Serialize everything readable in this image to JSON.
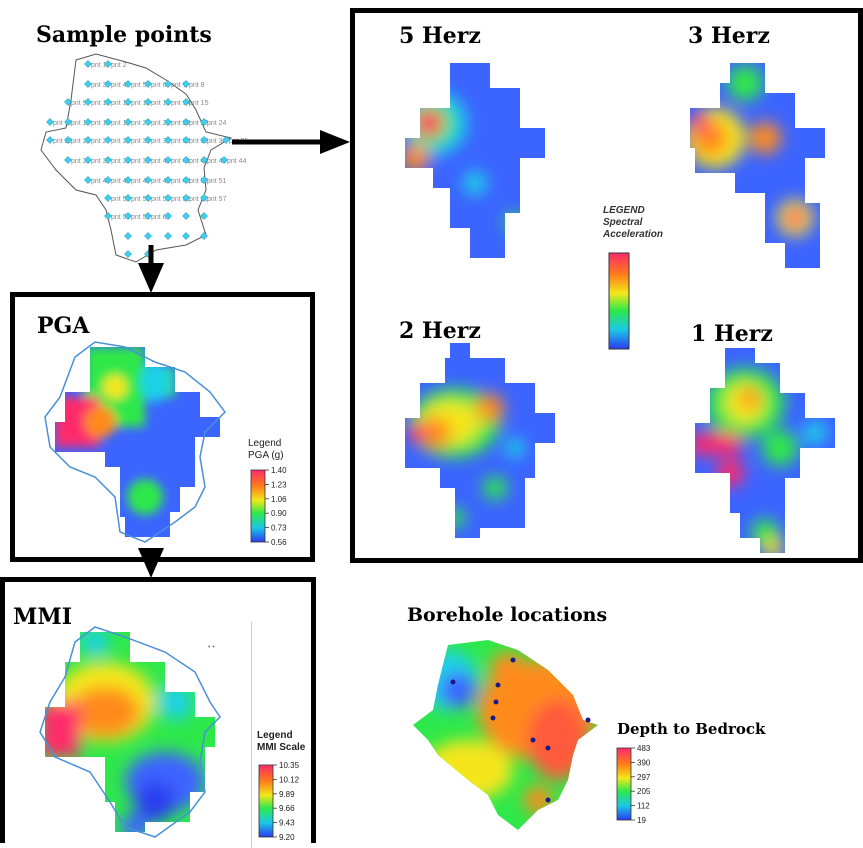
{
  "sample": {
    "title": "Sample points",
    "point_labels": [
      "pnt 1",
      "pnt 2",
      "pnt 3",
      "pnt 4",
      "pnt 5",
      "pnt 6",
      "pnt 7",
      "pnt 8",
      "pnt 9",
      "pnt 10",
      "pnt 11",
      "pnt 12",
      "pnt 13",
      "pnt 14",
      "pnt 15",
      "pnt 16",
      "pnt 17",
      "pnt 18",
      "pnt 19",
      "pnt 20",
      "pnt 21",
      "pnt 22",
      "pnt 23",
      "pnt 24",
      "pnt 25",
      "pnt 26",
      "pnt 27",
      "pnt 28",
      "pnt 30",
      "pnt 31",
      "pnt 32",
      "pnt 33",
      "pnt 34",
      "pnt 35",
      "pnt 36",
      "pnt 37",
      "pnt 38",
      "pnt 39",
      "pnt 40",
      "pnt 41",
      "pnt 42",
      "pnt 43",
      "pnt 44",
      "pnt 45",
      "pnt 46",
      "pnt 47",
      "pnt 48",
      "pnt 49",
      "pnt 50",
      "pnt 51",
      "pnt 52",
      "pnt 53",
      "pnt 54",
      "pnt 55",
      "pnt 56",
      "pnt 57",
      "pnt 58",
      "pnt 59",
      "pnt 60"
    ]
  },
  "spectral": {
    "maps": [
      {
        "title": "5 Herz"
      },
      {
        "title": "3 Herz"
      },
      {
        "title": "2 Herz"
      },
      {
        "title": "1 Herz"
      }
    ],
    "legend": {
      "line1": "LEGEND",
      "line2": "Spectral",
      "line3": "Acceleration"
    }
  },
  "pga": {
    "title": "PGA",
    "legend_title1": "Legend",
    "legend_title2": "PGA (g)",
    "ticks": [
      "1.40",
      "1.23",
      "1.06",
      "0.90",
      "0.73",
      "0.56"
    ]
  },
  "mmi": {
    "title": "MMI",
    "legend_title1": "Legend",
    "legend_title2": "MMI Scale",
    "ticks": [
      "10.35",
      "10.12",
      "9.89",
      "9.66",
      "9.43",
      "9.20"
    ]
  },
  "borehole": {
    "title": "Borehole locations",
    "legend_title": "Depth to Bedrock",
    "ticks": [
      "483",
      "390",
      "297",
      "205",
      "112",
      "19"
    ]
  },
  "colors": {
    "hot": "#ff2a6a",
    "warm": "#ff8a1a",
    "yellow": "#f5e61a",
    "green": "#2ee84a",
    "cyan": "#1ad2e6",
    "blue": "#3c64ff",
    "deep": "#2b3cf0",
    "outline": "#4a90d9",
    "point": "#3fd0f0"
  }
}
